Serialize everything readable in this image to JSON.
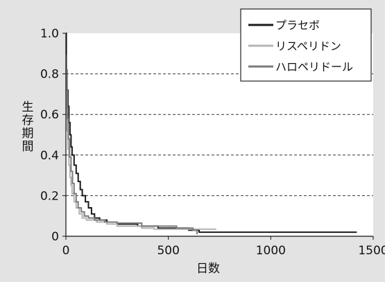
{
  "chart_data": {
    "type": "line",
    "step": true,
    "xlabel": "日数",
    "ylabel": "生存期間",
    "xlim": [
      0,
      1500
    ],
    "ylim": [
      0,
      1.0
    ],
    "x_ticks": [
      0,
      500,
      1000,
      1500
    ],
    "y_ticks": [
      0,
      0.2,
      0.4,
      0.6,
      0.8,
      1.0
    ],
    "y_tick_labels": [
      "0",
      "0.2",
      "0.4",
      "0.6",
      "0.8",
      "1.0"
    ],
    "grid": "horizontal dashed",
    "legend_position": "top-right",
    "series": [
      {
        "name": "プラセボ",
        "color": "#1a1a1a",
        "points": [
          [
            0,
            1.0
          ],
          [
            2,
            0.82
          ],
          [
            5,
            0.72
          ],
          [
            10,
            0.64
          ],
          [
            15,
            0.56
          ],
          [
            20,
            0.5
          ],
          [
            25,
            0.44
          ],
          [
            30,
            0.4
          ],
          [
            40,
            0.35
          ],
          [
            50,
            0.31
          ],
          [
            60,
            0.27
          ],
          [
            70,
            0.23
          ],
          [
            80,
            0.2
          ],
          [
            95,
            0.17
          ],
          [
            110,
            0.14
          ],
          [
            125,
            0.11
          ],
          [
            140,
            0.09
          ],
          [
            165,
            0.08
          ],
          [
            200,
            0.07
          ],
          [
            250,
            0.06
          ],
          [
            350,
            0.05
          ],
          [
            450,
            0.04
          ],
          [
            600,
            0.03
          ],
          [
            650,
            0.02
          ],
          [
            1420,
            0.02
          ]
        ]
      },
      {
        "name": "リスペリドン",
        "color": "#b4b4b4",
        "points": [
          [
            0,
            0.82
          ],
          [
            3,
            0.63
          ],
          [
            6,
            0.52
          ],
          [
            10,
            0.43
          ],
          [
            15,
            0.35
          ],
          [
            20,
            0.29
          ],
          [
            25,
            0.25
          ],
          [
            30,
            0.21
          ],
          [
            40,
            0.17
          ],
          [
            50,
            0.14
          ],
          [
            65,
            0.11
          ],
          [
            80,
            0.09
          ],
          [
            100,
            0.08
          ],
          [
            150,
            0.07
          ],
          [
            200,
            0.06
          ],
          [
            250,
            0.05
          ],
          [
            370,
            0.04
          ],
          [
            430,
            0.035
          ],
          [
            730,
            0.03
          ]
        ]
      },
      {
        "name": "ハロペリドール",
        "color": "#7a7a7a",
        "points": [
          [
            0,
            0.89
          ],
          [
            3,
            0.72
          ],
          [
            7,
            0.58
          ],
          [
            12,
            0.48
          ],
          [
            18,
            0.39
          ],
          [
            25,
            0.32
          ],
          [
            32,
            0.26
          ],
          [
            40,
            0.21
          ],
          [
            50,
            0.17
          ],
          [
            60,
            0.14
          ],
          [
            75,
            0.12
          ],
          [
            90,
            0.1
          ],
          [
            110,
            0.09
          ],
          [
            140,
            0.08
          ],
          [
            190,
            0.07
          ],
          [
            250,
            0.065
          ],
          [
            370,
            0.05
          ],
          [
            540,
            0.04
          ],
          [
            620,
            0.03
          ],
          [
            640,
            0.01
          ]
        ]
      }
    ]
  }
}
